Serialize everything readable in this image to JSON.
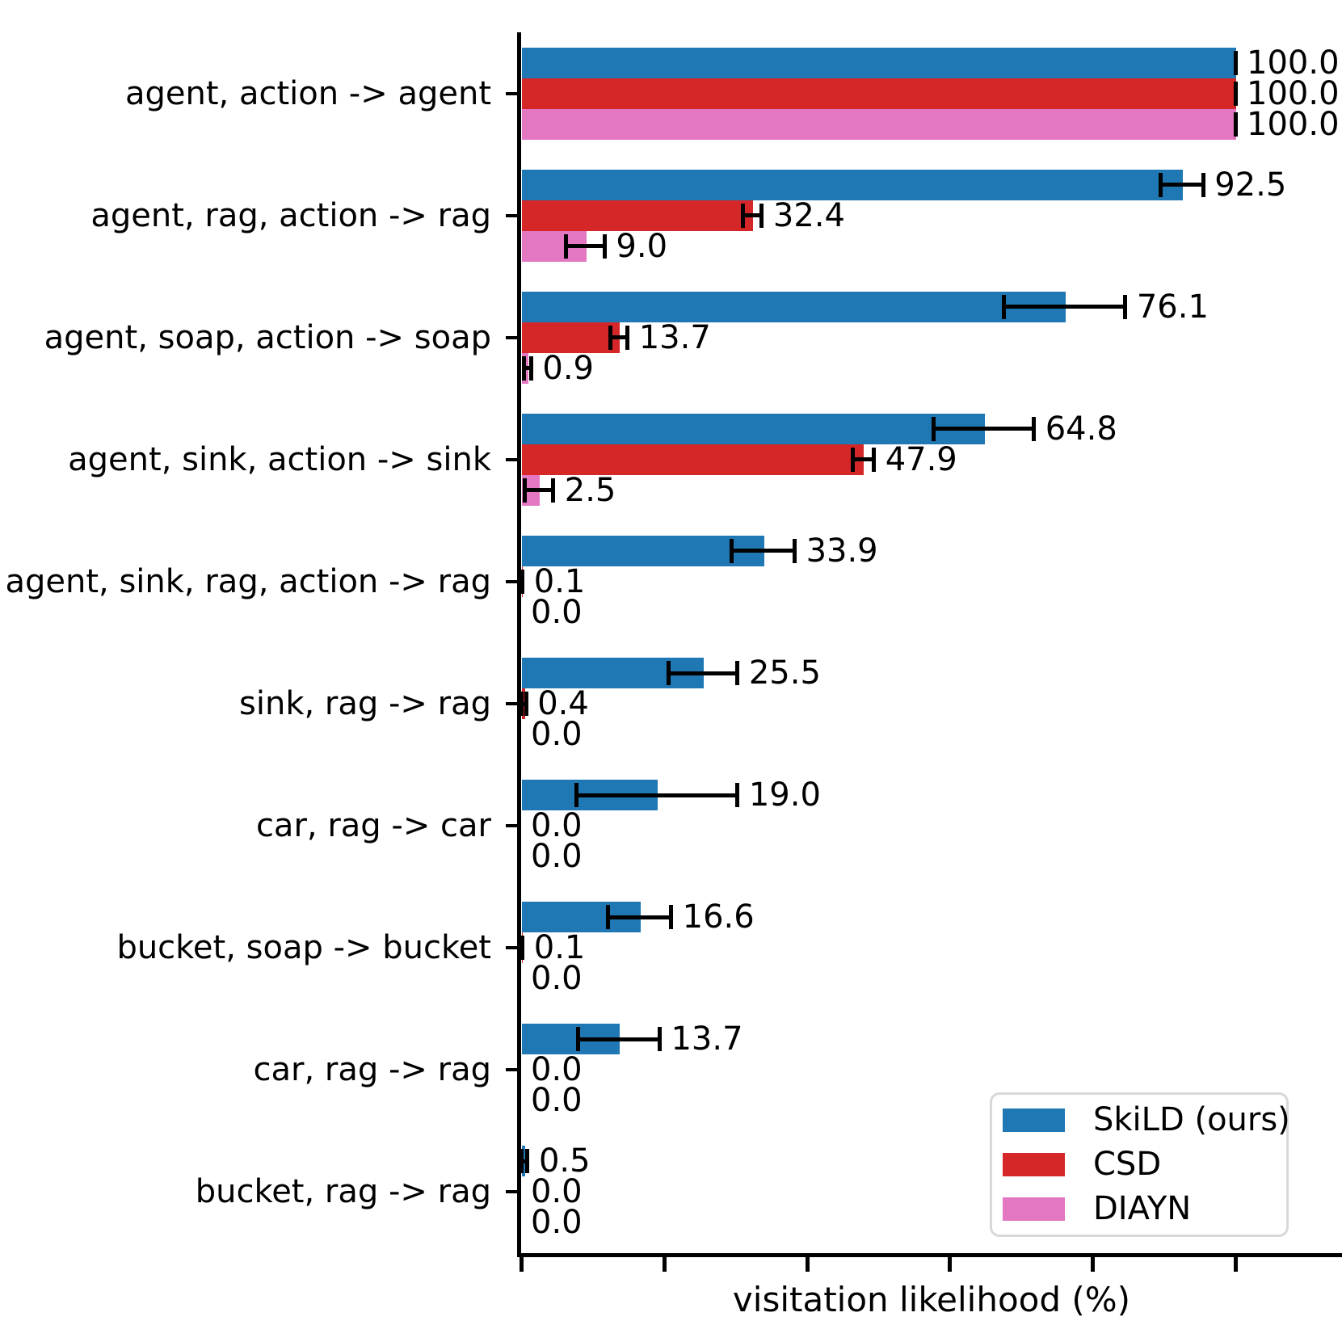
{
  "figure": {
    "background": "#ffffff",
    "text_color": "#000000",
    "legend": {
      "position": "lower right",
      "entries": [
        {
          "label": "SkiLD (ours)",
          "color": "#1f77b4"
        },
        {
          "label": "CSD",
          "color": "#d62728"
        },
        {
          "label": "DIAYN",
          "color": "#e377c2"
        }
      ]
    }
  },
  "chart_data": {
    "type": "bar",
    "orientation": "horizontal",
    "title": "",
    "xlabel": "visitation likelihood (%)",
    "ylabel": "",
    "xlim": [
      0,
      114.5
    ],
    "xticks": [
      0,
      20,
      40,
      60,
      80,
      100
    ],
    "xtick_labels_visible": false,
    "grid": false,
    "value_labels_decimals": 1,
    "categories": [
      "agent, action -> agent",
      "agent, rag, action -> rag",
      "agent, soap, action -> soap",
      "agent, sink, action -> sink",
      "agent, sink, rag, action -> rag",
      "sink, rag -> rag",
      "car, rag -> car",
      "bucket, soap -> bucket",
      "car, rag -> rag",
      "bucket, rag -> rag"
    ],
    "series": [
      {
        "name": "SkiLD (ours)",
        "color": "#1f77b4",
        "values": [
          100.0,
          92.5,
          76.1,
          64.8,
          33.9,
          25.5,
          19.0,
          16.6,
          13.7,
          0.5
        ],
        "errors": [
          0.0,
          3.0,
          8.5,
          7.0,
          4.4,
          4.8,
          11.3,
          4.4,
          5.7,
          0.4
        ]
      },
      {
        "name": "CSD",
        "color": "#d62728",
        "values": [
          100.0,
          32.4,
          13.7,
          47.9,
          0.1,
          0.4,
          0.0,
          0.1,
          0.0,
          0.0
        ],
        "errors": [
          0.0,
          1.3,
          1.2,
          1.5,
          0.1,
          0.3,
          null,
          0.1,
          null,
          null
        ]
      },
      {
        "name": "DIAYN",
        "color": "#e377c2",
        "values": [
          100.0,
          9.0,
          0.9,
          2.5,
          0.0,
          0.0,
          0.0,
          0.0,
          0.0,
          0.0
        ],
        "errors": [
          0.0,
          2.7,
          0.5,
          2.0,
          null,
          null,
          null,
          null,
          null,
          null
        ]
      }
    ]
  }
}
